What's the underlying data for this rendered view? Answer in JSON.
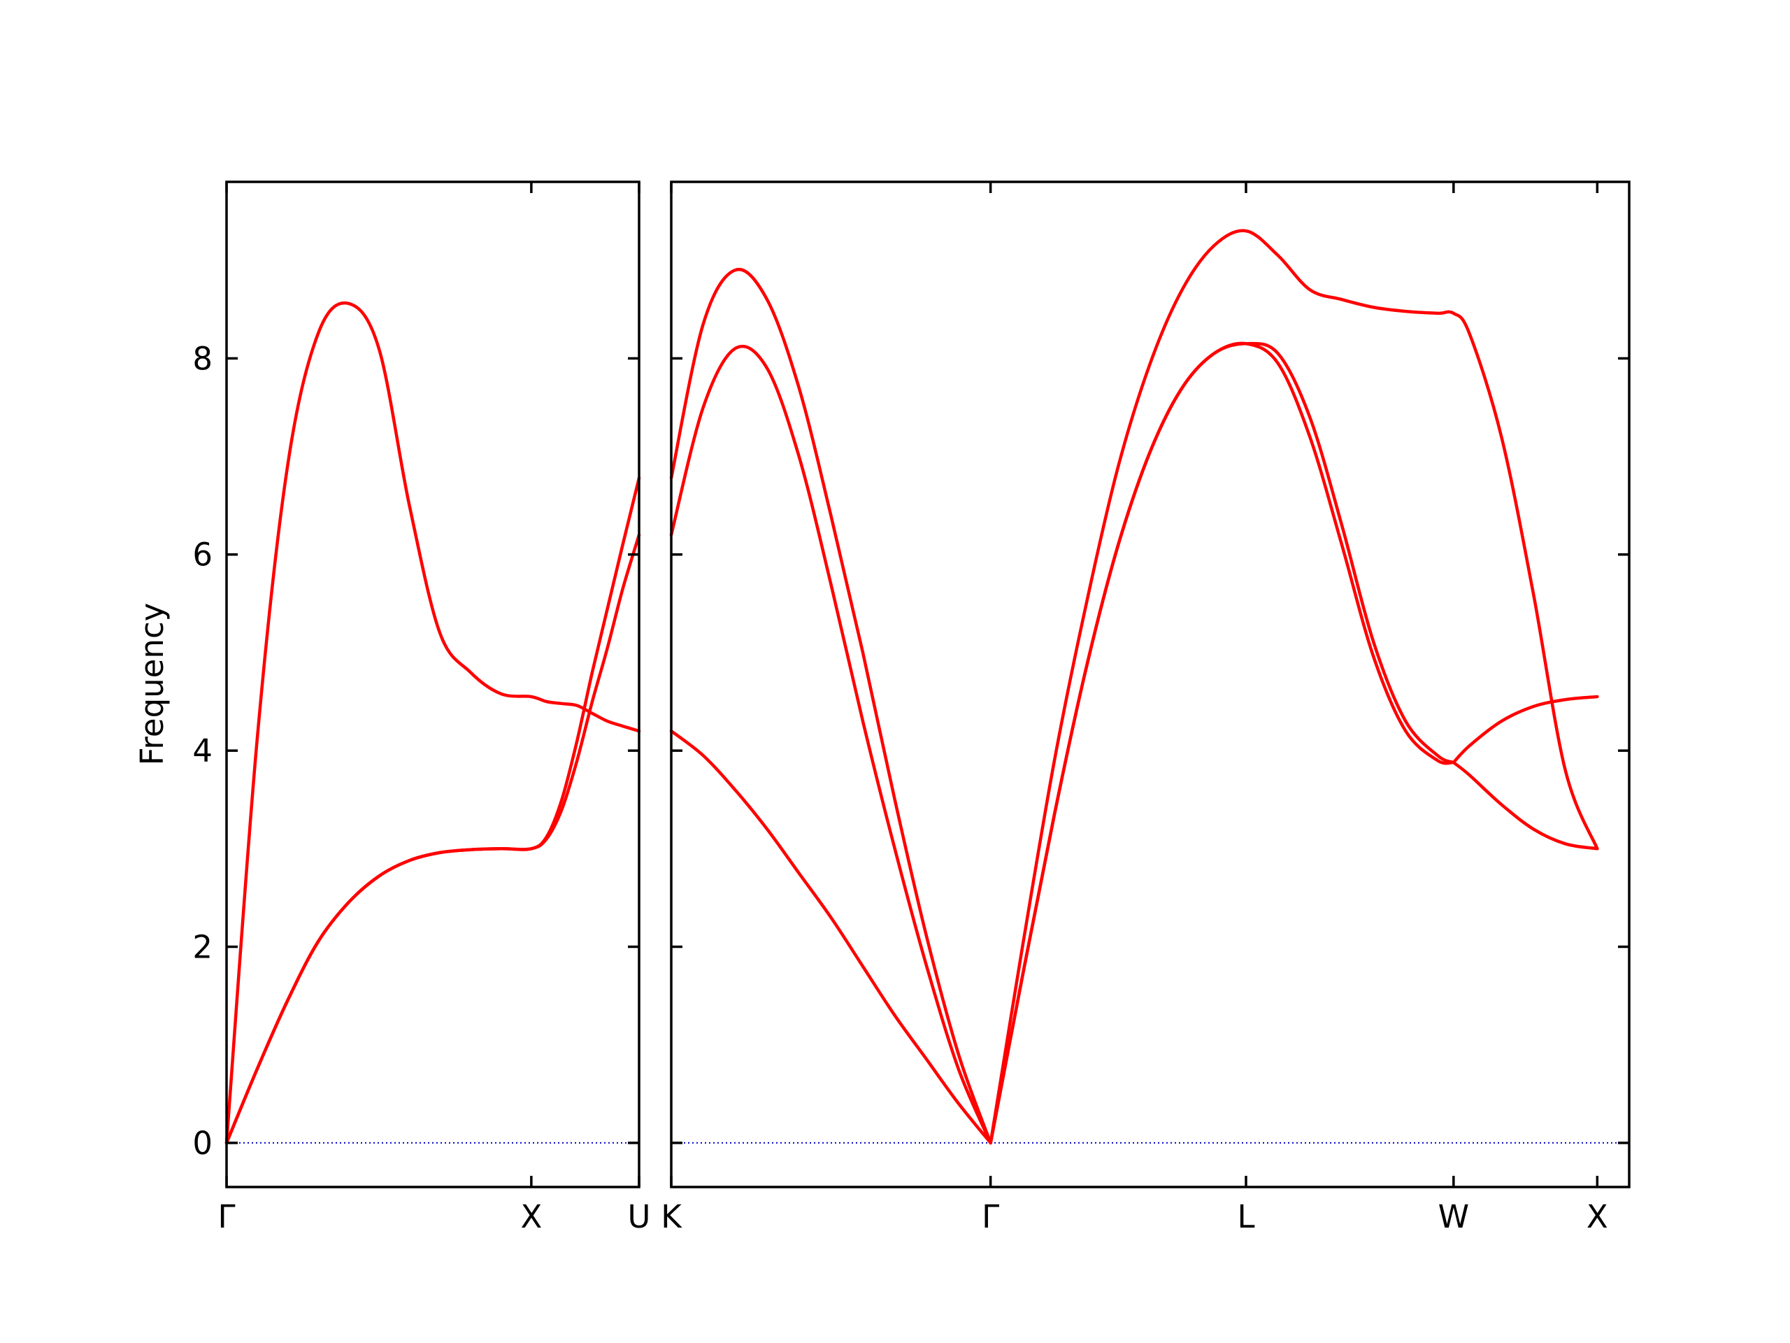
{
  "chart_data": {
    "type": "line",
    "ylabel": "Frequency",
    "ylim": [
      -0.45,
      9.8
    ],
    "yticks": [
      0,
      2,
      4,
      6,
      8
    ],
    "grid": false,
    "colors": {
      "band": "#ff0000",
      "zero_line": "#0000cc",
      "frame": "#000000"
    },
    "panels": [
      {
        "id": "panel-left",
        "xlim": [
          0,
          1.3536
        ],
        "ticks": [
          {
            "x": 0,
            "label": "Γ"
          },
          {
            "x": 1.0,
            "label": "X"
          },
          {
            "x": 1.3536,
            "label": "U"
          }
        ],
        "series": [
          {
            "x": [
              0,
              0.1,
              0.2,
              0.3,
              0.4,
              0.5,
              0.6,
              0.7,
              0.8,
              0.9,
              1.0,
              1.05,
              1.1,
              1.15,
              1.2,
              1.25,
              1.3,
              1.3536
            ],
            "y": [
              0,
              4.1,
              6.9,
              8.25,
              8.56,
              8.1,
              6.5,
              5.2,
              4.8,
              4.58,
              4.55,
              4.5,
              4.48,
              4.46,
              4.38,
              4.3,
              4.25,
              4.2
            ]
          },
          {
            "x": [
              0,
              0.1,
              0.2,
              0.3,
              0.4,
              0.5,
              0.6,
              0.7,
              0.8,
              0.9,
              1.0,
              1.05,
              1.1,
              1.15,
              1.2,
              1.25,
              1.3,
              1.3536
            ],
            "y": [
              0,
              0.75,
              1.45,
              2.05,
              2.45,
              2.72,
              2.88,
              2.96,
              2.99,
              3.0,
              3.0,
              3.12,
              3.5,
              4.1,
              4.8,
              5.45,
              6.1,
              6.78
            ]
          },
          {
            "x": [
              0,
              0.1,
              0.2,
              0.3,
              0.4,
              0.5,
              0.6,
              0.7,
              0.8,
              0.9,
              1.0,
              1.05,
              1.1,
              1.15,
              1.2,
              1.25,
              1.3,
              1.3536
            ],
            "y": [
              0,
              0.75,
              1.45,
              2.05,
              2.45,
              2.72,
              2.88,
              2.96,
              2.99,
              3.0,
              3.0,
              3.1,
              3.4,
              3.9,
              4.5,
              5.05,
              5.65,
              6.2
            ]
          }
        ]
      },
      {
        "id": "panel-right",
        "xlim": [
          0,
          3.0
        ],
        "ticks": [
          {
            "x": 0,
            "label": "K"
          },
          {
            "x": 1.0,
            "label": "Γ"
          },
          {
            "x": 1.8,
            "label": "L"
          },
          {
            "x": 2.45,
            "label": "W"
          },
          {
            "x": 2.9,
            "label": "X"
          }
        ],
        "series": [
          {
            "x": [
              0,
              0.1,
              0.2,
              0.3,
              0.4,
              0.5,
              0.6,
              0.7,
              0.8,
              0.9,
              1.0
            ],
            "y": [
              6.78,
              8.35,
              8.9,
              8.6,
              7.7,
              6.4,
              5.0,
              3.5,
              2.1,
              0.9,
              0
            ]
          },
          {
            "x": [
              0,
              0.1,
              0.2,
              0.3,
              0.4,
              0.5,
              0.6,
              0.7,
              0.8,
              0.9,
              1.0
            ],
            "y": [
              6.2,
              7.5,
              8.1,
              7.9,
              7.0,
              5.7,
              4.3,
              3.0,
              1.8,
              0.75,
              0
            ]
          },
          {
            "x": [
              0,
              0.1,
              0.2,
              0.3,
              0.4,
              0.5,
              0.6,
              0.7,
              0.8,
              0.9,
              1.0
            ],
            "y": [
              4.2,
              3.95,
              3.6,
              3.2,
              2.75,
              2.3,
              1.8,
              1.3,
              0.85,
              0.4,
              0
            ]
          },
          {
            "x": [
              1.0,
              1.1,
              1.2,
              1.3,
              1.4,
              1.5,
              1.6,
              1.7,
              1.8,
              1.9,
              2.0,
              2.1,
              2.2,
              2.3,
              2.4,
              2.45,
              2.5,
              2.6,
              2.7,
              2.8,
              2.9
            ],
            "y": [
              0,
              2.0,
              3.9,
              5.5,
              6.9,
              7.95,
              8.7,
              9.15,
              9.3,
              9.05,
              8.7,
              8.6,
              8.52,
              8.48,
              8.46,
              8.46,
              8.25,
              7.2,
              5.6,
              3.8,
              3.0
            ]
          },
          {
            "x": [
              1.0,
              1.1,
              1.2,
              1.3,
              1.4,
              1.5,
              1.6,
              1.7,
              1.8,
              1.9,
              2.0,
              2.1,
              2.2,
              2.3,
              2.4,
              2.45
            ],
            "y": [
              0,
              1.7,
              3.35,
              4.85,
              6.1,
              7.05,
              7.7,
              8.05,
              8.15,
              8.05,
              7.4,
              6.3,
              5.1,
              4.3,
              3.95,
              3.88
            ]
          },
          {
            "x": [
              1.0,
              1.1,
              1.2,
              1.3,
              1.4,
              1.5,
              1.6,
              1.7,
              1.8,
              1.9,
              2.0,
              2.1,
              2.2,
              2.3,
              2.4,
              2.45
            ],
            "y": [
              0,
              1.7,
              3.35,
              4.85,
              6.1,
              7.05,
              7.7,
              8.05,
              8.15,
              7.95,
              7.2,
              6.1,
              4.95,
              4.2,
              3.9,
              3.88
            ]
          },
          {
            "x": [
              2.45,
              2.5,
              2.6,
              2.7,
              2.8,
              2.9
            ],
            "y": [
              3.88,
              4.05,
              4.3,
              4.45,
              4.52,
              4.55
            ]
          },
          {
            "x": [
              2.45,
              2.5,
              2.6,
              2.7,
              2.8,
              2.9
            ],
            "y": [
              3.88,
              3.75,
              3.45,
              3.2,
              3.05,
              3.0
            ]
          }
        ]
      }
    ]
  }
}
